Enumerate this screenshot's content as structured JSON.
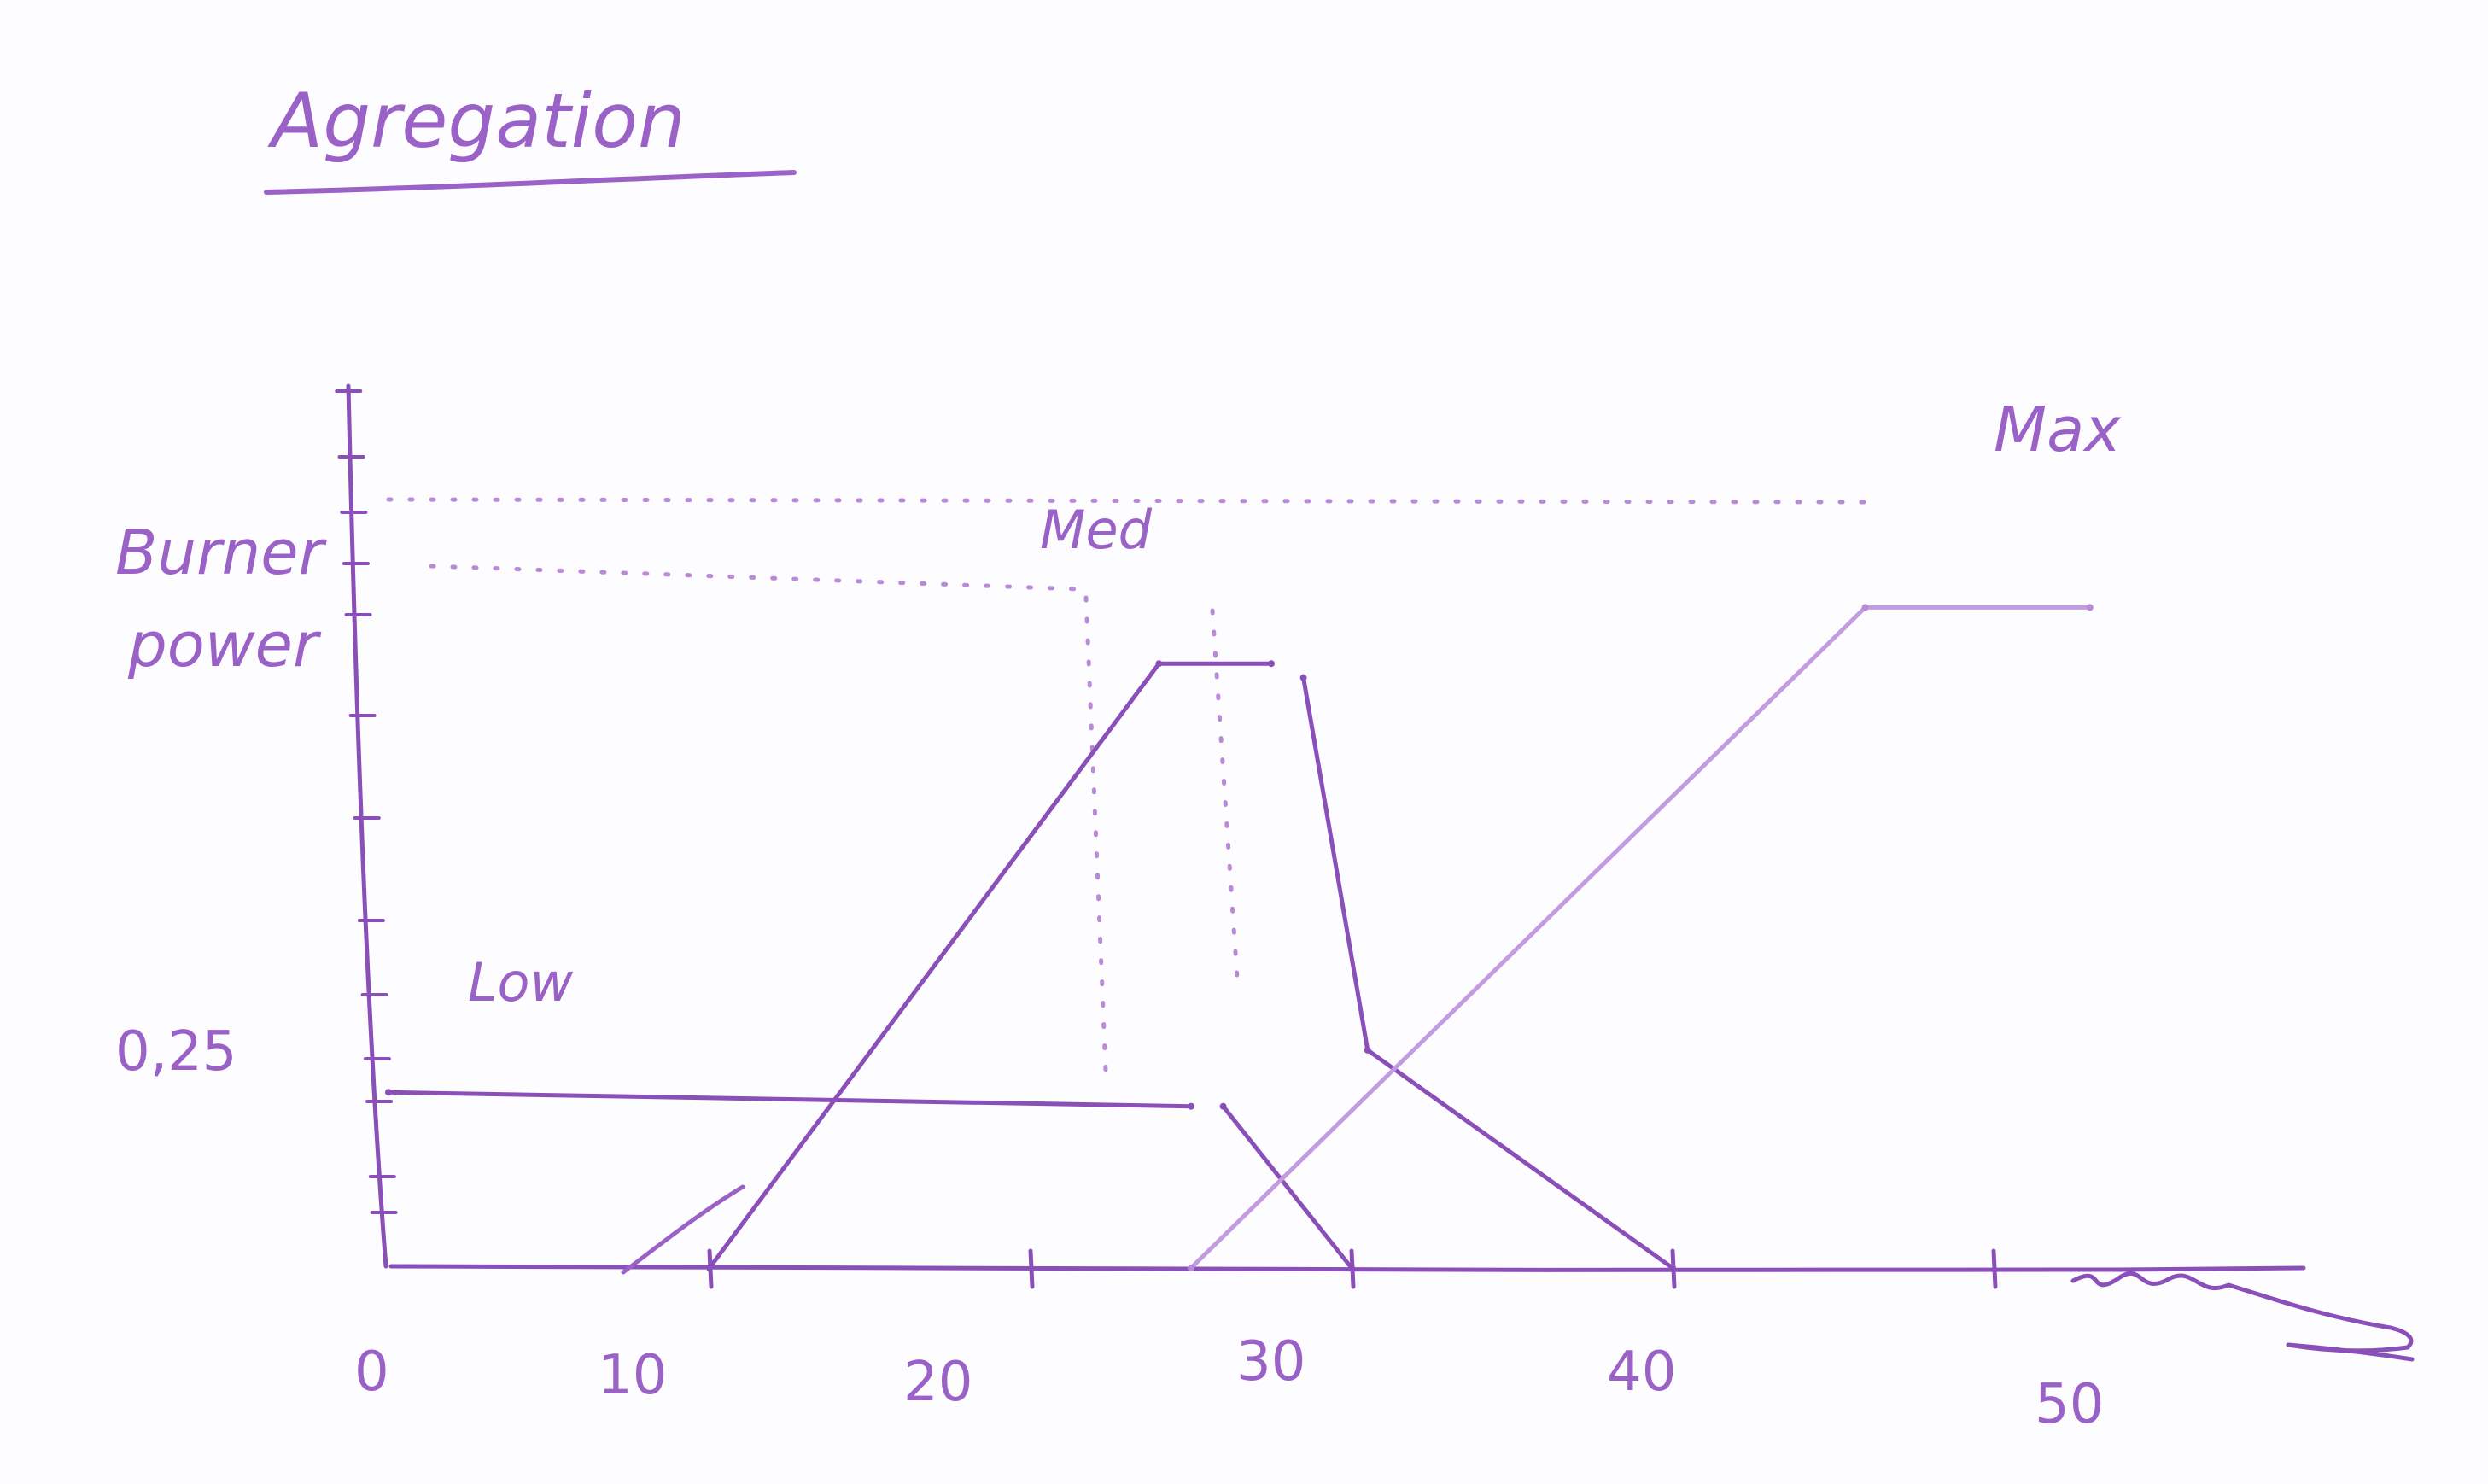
{
  "chart_data": {
    "type": "line",
    "title": "Agregation",
    "ylabel": "Burner power",
    "x_ticks": [
      "0",
      "10",
      "20",
      "30",
      "40",
      "50"
    ],
    "y_ticks": [
      "0,25"
    ],
    "xlim": [
      0,
      55
    ],
    "ylim": [
      0,
      1.1
    ],
    "grid": false,
    "legend": "none",
    "series": [
      {
        "name": "Low",
        "x": [
          0,
          25,
          26,
          30
        ],
        "y": [
          0.25,
          0.23,
          0.23,
          0
        ]
      },
      {
        "name": "Med",
        "x": [
          10,
          24,
          27.5,
          28.5,
          30.5,
          40
        ],
        "y": [
          0,
          0.86,
          0.86,
          0.84,
          0.31,
          0
        ]
      },
      {
        "name": "Max",
        "x": [
          25,
          46,
          53
        ],
        "y": [
          0,
          0.94,
          0.94
        ]
      }
    ],
    "colors": {
      "ink": "#9a62c6",
      "ink_dark": "#8a4fb8",
      "ink_light": "#c39be0",
      "paper": "#fdfcff"
    }
  }
}
